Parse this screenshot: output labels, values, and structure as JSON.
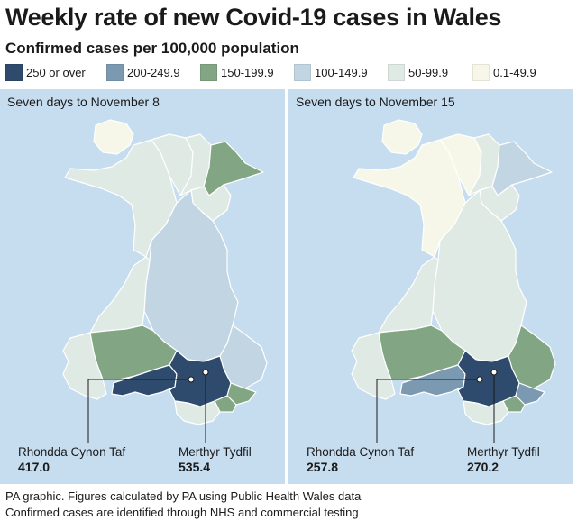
{
  "title": "Weekly rate of new Covid-19 cases in Wales",
  "subtitle": "Confirmed cases per 100,000 population",
  "legend": [
    {
      "label": "250 or over",
      "color": "#2e4a6d"
    },
    {
      "label": "200-249.9",
      "color": "#7b9ab1"
    },
    {
      "label": "150-199.9",
      "color": "#82a583"
    },
    {
      "label": "100-149.9",
      "color": "#c1d5e2"
    },
    {
      "label": "50-99.9",
      "color": "#e0eae5"
    },
    {
      "label": "0.1-49.9",
      "color": "#f7f7e9"
    }
  ],
  "maps": [
    {
      "period": "Seven days to November 8",
      "callouts": [
        {
          "area": "Rhondda Cynon Taf",
          "value": "417.0"
        },
        {
          "area": "Merthyr Tydfil",
          "value": "535.4"
        }
      ],
      "region_bands": {
        "anglesey": "0.1-49.9",
        "conwy": "50-99.9",
        "denbighshire": "50-99.9",
        "flintshire": "150-199.9",
        "wrexham": "50-99.9",
        "gwynedd": "50-99.9",
        "powys": "100-149.9",
        "ceredigion": "50-99.9",
        "pembrokeshire": "50-99.9",
        "carmarthenshire": "150-199.9",
        "monmouthshire": "100-149.9",
        "swansea": "250 or over",
        "valleys": "250 or over",
        "torfaen": "150-199.9",
        "newport": "150-199.9",
        "vale_of_glamorgan": "50-99.9"
      }
    },
    {
      "period": "Seven days to November 15",
      "callouts": [
        {
          "area": "Rhondda Cynon Taf",
          "value": "257.8"
        },
        {
          "area": "Merthyr Tydfil",
          "value": "270.2"
        }
      ],
      "region_bands": {
        "anglesey": "0.1-49.9",
        "conwy": "0.1-49.9",
        "denbighshire": "50-99.9",
        "flintshire": "100-149.9",
        "wrexham": "50-99.9",
        "gwynedd": "0.1-49.9",
        "powys": "50-99.9",
        "ceredigion": "50-99.9",
        "pembrokeshire": "50-99.9",
        "carmarthenshire": "150-199.9",
        "monmouthshire": "150-199.9",
        "swansea": "200-249.9",
        "valleys": "250 or over",
        "torfaen": "200-249.9",
        "newport": "150-199.9",
        "vale_of_glamorgan": "50-99.9"
      }
    }
  ],
  "footer": {
    "line1": "PA graphic. Figures calculated by PA using Public Health Wales data",
    "line2": "Confirmed cases are identified through NHS and commercial testing"
  }
}
